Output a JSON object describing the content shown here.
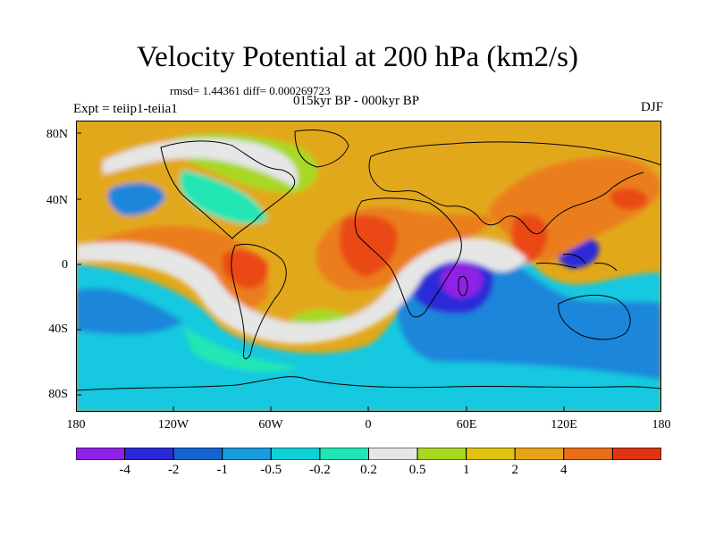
{
  "title": "Velocity Potential at 200 hPa (km2/s)",
  "stats_line": "rmsd= 1.44361 diff= 0.000269723",
  "period_line": "015kyr BP - 000kyr BP",
  "experiment": "Expt = teiip1-teiia1",
  "season": "DJF",
  "lat_labels": [
    "80N",
    "40N",
    "0",
    "40S",
    "80S"
  ],
  "lon_labels": [
    "180",
    "120W",
    "60W",
    "0",
    "60E",
    "120E",
    "180"
  ],
  "colorbar": {
    "labels": [
      "-4",
      "-2",
      "-1",
      "-0.5",
      "-0.2",
      "0.2",
      "0.5",
      "1",
      "2",
      "4"
    ],
    "colors": [
      "#8f20e6",
      "#2a2ad8",
      "#1565d0",
      "#179ce0",
      "#12d0d8",
      "#20e6b4",
      "#e6e6e6",
      "#a8d820",
      "#e0c412",
      "#e8a418",
      "#ea6e18",
      "#e03410",
      "#e01010"
    ]
  },
  "field_colors": {
    "pos_strong": "#ea4a12",
    "pos_mod": "#ea7e1a",
    "pos_weak": "#e2a81a",
    "pos_light": "#a8d820",
    "zero": "#e6e6e6",
    "neg_light": "#20e6b4",
    "neg_weak": "#17c8e0",
    "neg_mod": "#1b86da",
    "neg_strong": "#2a2ad8",
    "neg_max": "#8f20e6"
  }
}
